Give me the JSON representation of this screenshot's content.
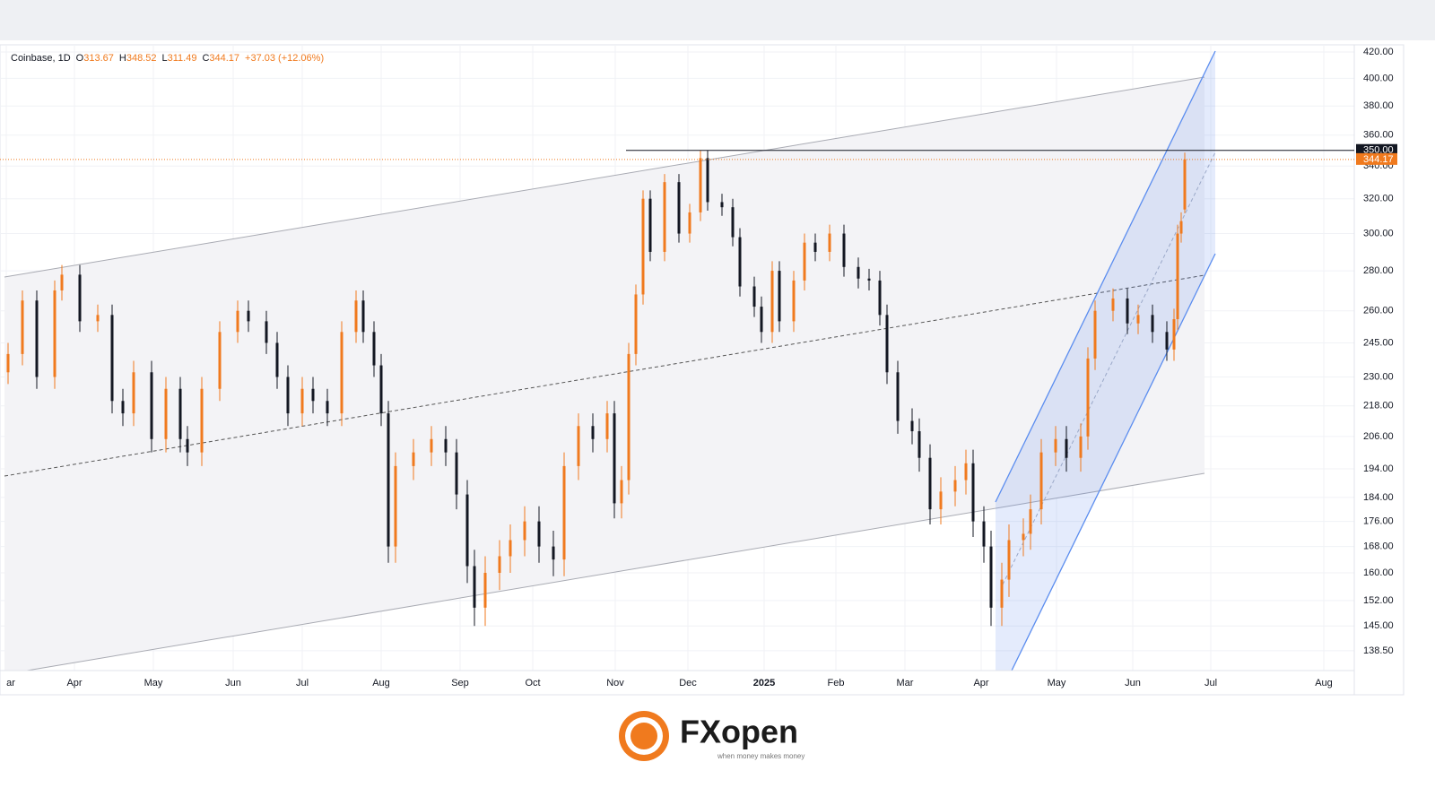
{
  "chart_data": {
    "type": "candlestick",
    "symbol": "Coinbase, 1D",
    "ohlc_letters": [
      "O",
      "H",
      "L",
      "C"
    ],
    "change": "+37.03 (+12.06%)",
    "log_scale": true,
    "grid": true,
    "up_color": "#f07a1e",
    "down_color": "#131722",
    "xlim": [
      0,
      376.25
    ],
    "ylim": [
      133.5,
      425.6
    ],
    "xticks": [
      {
        "value": 0.5,
        "label": "ar"
      },
      {
        "value": 19.5,
        "label": "Apr"
      },
      {
        "value": 41.5,
        "label": "May"
      },
      {
        "value": 63.75,
        "label": "Jun"
      },
      {
        "value": 83,
        "label": "Jul"
      },
      {
        "value": 105,
        "label": "Aug"
      },
      {
        "value": 127,
        "label": "Sep"
      },
      {
        "value": 147.25,
        "label": "Oct"
      },
      {
        "value": 170.25,
        "label": "Nov"
      },
      {
        "value": 190.5,
        "label": "Dec"
      },
      {
        "value": 211.75,
        "label": "2025"
      },
      {
        "value": 231.75,
        "label": "Feb"
      },
      {
        "value": 251,
        "label": "Mar"
      },
      {
        "value": 272.25,
        "label": "Apr"
      },
      {
        "value": 293.25,
        "label": "May"
      },
      {
        "value": 314.5,
        "label": "Jun"
      },
      {
        "value": 336.25,
        "label": "Jul"
      },
      {
        "value": 367.75,
        "label": "Aug"
      }
    ],
    "yticks": [
      {
        "value": 138.5,
        "label": "138.50"
      },
      {
        "value": 145,
        "label": "145.00"
      },
      {
        "value": 152,
        "label": "152.00"
      },
      {
        "value": 160,
        "label": "160.00"
      },
      {
        "value": 168,
        "label": "168.00"
      },
      {
        "value": 176,
        "label": "176.00"
      },
      {
        "value": 184,
        "label": "184.00"
      },
      {
        "value": 194,
        "label": "194.00"
      },
      {
        "value": 206,
        "label": "206.00"
      },
      {
        "value": 218,
        "label": "218.00"
      },
      {
        "value": 230,
        "label": "230.00"
      },
      {
        "value": 245,
        "label": "245.00"
      },
      {
        "value": 260,
        "label": "260.00"
      },
      {
        "value": 280,
        "label": "280.00"
      },
      {
        "value": 300,
        "label": "300.00"
      },
      {
        "value": 320,
        "label": "320.00"
      },
      {
        "value": 340,
        "label": "340.00"
      },
      {
        "value": 360,
        "label": "360.00"
      },
      {
        "value": 380,
        "label": "380.00"
      },
      {
        "value": 400,
        "label": "400.00"
      },
      {
        "value": 420,
        "label": "420.00"
      }
    ],
    "level": {
      "value": 350,
      "label": "350.00"
    },
    "x": [
      1,
      5,
      9,
      14,
      16,
      21,
      26,
      30,
      33,
      36,
      41,
      45,
      49,
      51,
      55,
      60,
      65,
      68,
      73,
      76,
      79,
      83,
      86,
      90,
      94,
      98,
      100,
      103,
      105,
      107,
      109,
      114,
      119,
      123,
      126,
      129,
      131,
      134,
      138,
      141,
      145,
      149,
      153,
      156,
      160,
      164,
      168,
      170,
      172,
      174,
      176,
      178,
      180,
      184,
      188,
      191,
      194,
      196,
      200,
      203,
      205,
      209,
      211,
      214,
      216,
      220,
      223,
      226,
      230,
      234,
      238,
      241,
      244,
      246,
      249,
      253,
      255,
      258,
      261,
      265,
      268,
      270,
      273,
      275,
      278,
      280,
      284,
      286,
      289,
      293,
      296,
      300,
      302,
      304,
      309,
      313,
      316,
      320,
      324,
      326,
      327,
      328,
      329
    ],
    "open": [
      232,
      240,
      265,
      230,
      270,
      278,
      255,
      258,
      220,
      215,
      232,
      205,
      225,
      205,
      200,
      225,
      250,
      260,
      255,
      245,
      230,
      215,
      225,
      220,
      215,
      250,
      265,
      250,
      235,
      215,
      168,
      195,
      200,
      205,
      200,
      185,
      162,
      150,
      160,
      165,
      170,
      176,
      168,
      164,
      195,
      210,
      205,
      215,
      182,
      190,
      240,
      268,
      320,
      290,
      330,
      300,
      312,
      345,
      318,
      315,
      298,
      272,
      262,
      250,
      280,
      255,
      275,
      295,
      290,
      300,
      282,
      276,
      275,
      258,
      232,
      212,
      208,
      198,
      180,
      186,
      190,
      196,
      176,
      168,
      150,
      158,
      170,
      172,
      180,
      200,
      205,
      198,
      206,
      238,
      260,
      266,
      254,
      258,
      250,
      242,
      256,
      300,
      313.67
    ],
    "high": [
      245,
      270,
      270,
      275,
      283,
      283,
      263,
      263,
      225,
      237,
      237,
      230,
      230,
      210,
      230,
      255,
      265,
      265,
      260,
      250,
      235,
      230,
      230,
      225,
      255,
      270,
      270,
      255,
      240,
      220,
      200,
      205,
      210,
      210,
      205,
      190,
      167,
      165,
      170,
      175,
      181,
      181,
      173,
      200,
      215,
      215,
      220,
      220,
      195,
      245,
      273,
      325,
      325,
      335,
      335,
      317,
      350,
      350,
      323,
      320,
      303,
      277,
      267,
      285,
      285,
      280,
      300,
      300,
      305,
      305,
      287,
      281,
      280,
      263,
      237,
      217,
      213,
      203,
      191,
      195,
      201,
      201,
      181,
      173,
      163,
      175,
      177,
      185,
      205,
      210,
      210,
      211,
      243,
      265,
      271,
      271,
      263,
      263,
      255,
      261,
      305,
      312,
      348.52
    ],
    "low": [
      227,
      235,
      225,
      225,
      265,
      250,
      250,
      215,
      210,
      210,
      200,
      200,
      200,
      195,
      195,
      220,
      245,
      250,
      240,
      225,
      210,
      210,
      215,
      210,
      210,
      245,
      245,
      230,
      210,
      163,
      163,
      190,
      195,
      195,
      180,
      157,
      145,
      145,
      155,
      160,
      165,
      163,
      159,
      159,
      190,
      200,
      200,
      177,
      177,
      185,
      235,
      263,
      285,
      285,
      295,
      295,
      307,
      313,
      310,
      293,
      267,
      257,
      245,
      245,
      250,
      250,
      270,
      285,
      285,
      277,
      271,
      270,
      253,
      227,
      207,
      203,
      193,
      175,
      175,
      181,
      185,
      171,
      163,
      145,
      145,
      153,
      165,
      167,
      175,
      195,
      193,
      193,
      201,
      233,
      255,
      249,
      249,
      245,
      237,
      237,
      251,
      295,
      311.49
    ],
    "close": [
      240,
      265,
      230,
      270,
      278,
      255,
      258,
      220,
      215,
      232,
      205,
      225,
      205,
      200,
      225,
      250,
      260,
      255,
      245,
      230,
      215,
      225,
      220,
      215,
      250,
      265,
      250,
      235,
      215,
      168,
      195,
      200,
      205,
      200,
      185,
      162,
      150,
      160,
      165,
      170,
      176,
      168,
      164,
      195,
      210,
      205,
      215,
      182,
      190,
      240,
      268,
      320,
      290,
      330,
      300,
      312,
      345,
      318,
      315,
      298,
      272,
      262,
      250,
      280,
      255,
      275,
      295,
      290,
      300,
      282,
      276,
      275,
      258,
      232,
      212,
      208,
      198,
      180,
      186,
      190,
      196,
      176,
      168,
      150,
      158,
      170,
      172,
      180,
      200,
      205,
      198,
      206,
      238,
      260,
      266,
      254,
      258,
      250,
      242,
      256,
      300,
      307,
      344.17
    ]
  },
  "logo": {
    "brand": "FXopen",
    "tagline": "when money makes money"
  }
}
